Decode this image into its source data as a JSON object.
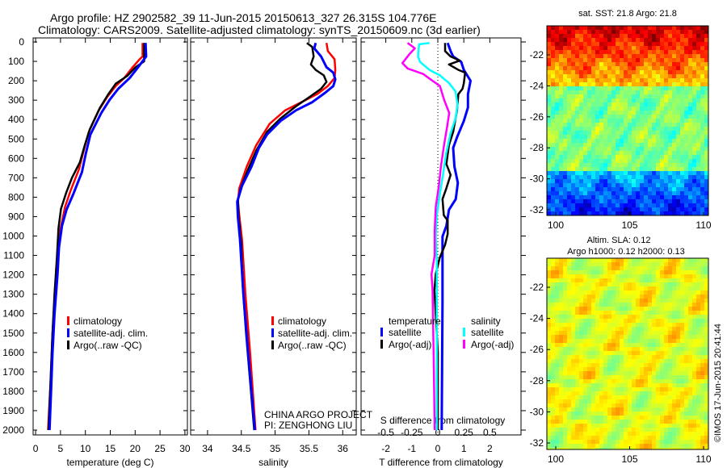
{
  "title": {
    "line1": "Argo profile: HZ 2902582_39 11-Jun-2015 20150613_327 26.315S 104.776E",
    "line2": "Climatology: CARS2009. Satellite-adjusted climatology: synTS_20150609.nc (3d earlier)"
  },
  "colors": {
    "climatology": "#ff0000",
    "satellite": "#0000ff",
    "argo": "#000000",
    "s_satellite": "#00ffff",
    "s_argo": "#ff00ff"
  },
  "chart_data": [
    {
      "type": "line",
      "id": "temperature",
      "xlabel": "temperature (deg C)",
      "ylabel": "",
      "xlim": [
        -0.5,
        30.5
      ],
      "ylim": [
        2025,
        0
      ],
      "xticks": [
        "0",
        "5",
        "10",
        "15",
        "20",
        "25",
        "30"
      ],
      "xtick_values": [
        0,
        5,
        10,
        15,
        20,
        25,
        30
      ],
      "yticks": [
        "0",
        "100",
        "200",
        "300",
        "400",
        "500",
        "600",
        "700",
        "800",
        "900",
        "1000",
        "1100",
        "1200",
        "1300",
        "1400",
        "1500",
        "1600",
        "1700",
        "1800",
        "1900",
        "2000"
      ],
      "legend": [
        "climatology",
        "satellite-adj. clim.",
        "Argo(..raw -QC)"
      ],
      "series": [
        {
          "name": "climatology",
          "color": "#ff0000",
          "depth": [
            5,
            75,
            89,
            130,
            186,
            227,
            283,
            352,
            463,
            546,
            657,
            768,
            852,
            963,
            1100,
            1300,
            1500,
            1750,
            2000
          ],
          "values": [
            21.5,
            21.5,
            20.9,
            19.5,
            17.8,
            16.1,
            14.4,
            12.7,
            10.7,
            9.8,
            8.7,
            7.0,
            5.9,
            5.0,
            4.4,
            3.9,
            3.4,
            3.0,
            2.5
          ]
        },
        {
          "name": "Argo(..raw -QC)",
          "color": "#000000",
          "depth": [
            5,
            100,
            130,
            175,
            215,
            270,
            340,
            450,
            530,
            620,
            700,
            780,
            860,
            960,
            1100,
            1300,
            1500,
            1750,
            2000
          ],
          "values": [
            21.8,
            21.8,
            20.1,
            18.4,
            16.1,
            14.6,
            12.9,
            10.9,
            9.9,
            8.9,
            7.3,
            6.1,
            5.1,
            4.6,
            4.3,
            3.8,
            3.4,
            3.0,
            2.6
          ]
        },
        {
          "name": "satellite-adj. clim.",
          "color": "#0000ff",
          "depth": [
            5,
            75,
            130,
            186,
            241,
            297,
            366,
            477,
            574,
            671,
            782,
            865,
            948,
            1059,
            1197,
            1400,
            1600,
            1800,
            2000
          ],
          "values": [
            22.1,
            22.2,
            20.6,
            18.9,
            16.6,
            14.9,
            13.2,
            11.0,
            10.1,
            9.3,
            7.6,
            6.2,
            5.3,
            4.7,
            4.4,
            3.8,
            3.4,
            3.1,
            2.8
          ]
        }
      ]
    },
    {
      "type": "line",
      "id": "salinity",
      "xlabel": "salinity",
      "xlim": [
        33.75,
        36.2
      ],
      "ylim": [
        2025,
        0
      ],
      "xticks": [
        "34",
        "34.5",
        "35",
        "35.5",
        "36"
      ],
      "xtick_values": [
        34,
        34.5,
        35,
        35.5,
        36
      ],
      "legend": [
        "climatology",
        "satellite-adj. clim.",
        "Argo(..raw -QC)"
      ],
      "series": [
        {
          "name": "climatology",
          "color": "#ff0000",
          "depth": [
            5,
            47,
            89,
            144,
            186,
            227,
            269,
            310,
            352,
            421,
            532,
            643,
            754,
            823,
            893,
            1017,
            1300,
            1600,
            2000
          ],
          "values": [
            35.76,
            35.78,
            35.88,
            35.89,
            35.88,
            35.78,
            35.62,
            35.39,
            35.15,
            34.92,
            34.72,
            34.58,
            34.47,
            34.45,
            34.47,
            34.51,
            34.56,
            34.63,
            34.71
          ]
        },
        {
          "name": "Argo(..raw -QC)",
          "color": "#000000",
          "depth": [
            5,
            26,
            75,
            116,
            144,
            172,
            206,
            241,
            283,
            331,
            394,
            463,
            560,
            657,
            754,
            810,
            900,
            1050,
            1250,
            1500,
            2000
          ],
          "values": [
            35.47,
            35.55,
            35.57,
            35.53,
            35.6,
            35.72,
            35.76,
            35.68,
            35.51,
            35.31,
            35.08,
            34.88,
            34.72,
            34.6,
            34.49,
            34.45,
            34.46,
            34.5,
            34.52,
            34.57,
            34.69
          ]
        },
        {
          "name": "satellite-adj. clim.",
          "color": "#0000ff",
          "depth": [
            5,
            33,
            75,
            130,
            158,
            193,
            227,
            262,
            310,
            352,
            407,
            477,
            546,
            643,
            741,
            823,
            906,
            1017,
            1300,
            1600,
            2000
          ],
          "values": [
            35.6,
            35.58,
            35.68,
            35.76,
            35.86,
            35.89,
            35.86,
            35.74,
            35.55,
            35.31,
            35.08,
            34.88,
            34.76,
            34.65,
            34.51,
            34.44,
            34.45,
            34.48,
            34.53,
            34.6,
            34.7
          ]
        }
      ],
      "annotations": [
        "CHINA ARGO PROJECT",
        "PI: ZENGHONG LIU"
      ]
    },
    {
      "type": "line",
      "id": "difference",
      "xlabel": "T difference from climatology",
      "xlabel_top": "S difference from climatology",
      "xlim": [
        -2.95,
        3.2
      ],
      "s_xlim": [
        -0.7375,
        0.8
      ],
      "ylim": [
        2025,
        0
      ],
      "xticks": [
        "-2",
        "-1",
        "0",
        "1",
        "2"
      ],
      "xtick_values": [
        -2,
        -1,
        0,
        1,
        2
      ],
      "s_xticks": [
        "-0.5",
        "-0.25",
        "0",
        "0.25",
        "0.5"
      ],
      "s_xtick_values": [
        -0.5,
        -0.25,
        0,
        0.25,
        0.5
      ],
      "legend_groups": [
        {
          "title": "temperature",
          "items": [
            "satellite",
            "Argo(-adj)"
          ]
        },
        {
          "title": "salinity",
          "items": [
            "satellite",
            "Argo(-adj)"
          ]
        }
      ],
      "series": [
        {
          "name": "temperature satellite",
          "axis": "T",
          "color": "#0000ff",
          "depth": [
            5,
            47,
            75,
            103,
            144,
            200,
            269,
            338,
            407,
            491,
            546,
            643,
            726,
            810,
            865,
            948,
            1003,
            1335,
            2000
          ],
          "values": [
            0.38,
            0.49,
            0.59,
            0.9,
            1.0,
            1.26,
            1.16,
            1.16,
            1.0,
            0.74,
            0.59,
            0.64,
            0.77,
            0.69,
            0.43,
            0.33,
            0.18,
            0.18,
            0.15
          ]
        },
        {
          "name": "temperature Argo(-adj)",
          "axis": "T",
          "color": "#000000",
          "depth": [
            5,
            47,
            75,
            96,
            116,
            144,
            158,
            213,
            241,
            269,
            352,
            463,
            532,
            629,
            685,
            754,
            810,
            893,
            920,
            990,
            1045,
            1114,
            1197,
            1280,
            1600,
            2000
          ],
          "values": [
            0.28,
            0.28,
            0.49,
            0.85,
            0.43,
            0.79,
            1.05,
            1.0,
            0.95,
            0.79,
            0.74,
            0.59,
            0.43,
            0.33,
            0.49,
            0.33,
            0.18,
            0.23,
            0.38,
            0.38,
            0.28,
            0.07,
            -0.08,
            -0.13,
            0.0,
            0.0
          ]
        },
        {
          "name": "salinity satellite",
          "axis": "S",
          "color": "#00ffff",
          "depth": [
            5,
            12,
            75,
            103,
            144,
            172,
            213,
            255,
            324,
            394,
            477,
            574,
            685,
            782,
            893,
            1003,
            1128,
            1280,
            1600,
            2000
          ],
          "values": [
            -0.08,
            -0.18,
            -0.19,
            -0.17,
            -0.08,
            0.02,
            0.11,
            0.17,
            0.19,
            0.17,
            0.12,
            0.08,
            0.05,
            0.02,
            -0.01,
            -0.02,
            -0.01,
            -0.01,
            -0.01,
            -0.01
          ]
        },
        {
          "name": "salinity Argo(-adj)",
          "axis": "S",
          "color": "#ff00ff",
          "depth": [
            5,
            33,
            61,
            109,
            137,
            165,
            193,
            227,
            297,
            366,
            435,
            532,
            643,
            741,
            852,
            976,
            1100,
            1197,
            1280,
            1600,
            2000
          ],
          "values": [
            -0.29,
            -0.22,
            -0.27,
            -0.34,
            -0.29,
            -0.14,
            -0.07,
            0.02,
            0.06,
            0.11,
            0.09,
            0.06,
            0.03,
            0.01,
            -0.02,
            -0.03,
            -0.03,
            -0.06,
            -0.05,
            -0.04,
            -0.03
          ]
        }
      ]
    }
  ],
  "maps": {
    "sst": {
      "title": "sat. SST: 21.8 Argo: 21.8",
      "lat_ticks": [
        "-22",
        "-24",
        "-26",
        "-28",
        "-30",
        "-32"
      ],
      "lon_ticks": [
        "100",
        "105",
        "110"
      ]
    },
    "sla": {
      "title_line1": "Altim. SLA: 0.12",
      "title_line2": "Argo h1000: 0.12 h2000: 0.13",
      "lat_ticks": [
        "-22",
        "-24",
        "-26",
        "-28",
        "-30",
        "-32"
      ],
      "lon_ticks": [
        "100",
        "105",
        "110"
      ]
    }
  },
  "copyright": "©IMOS 17-Jun-2015 20:41:44"
}
